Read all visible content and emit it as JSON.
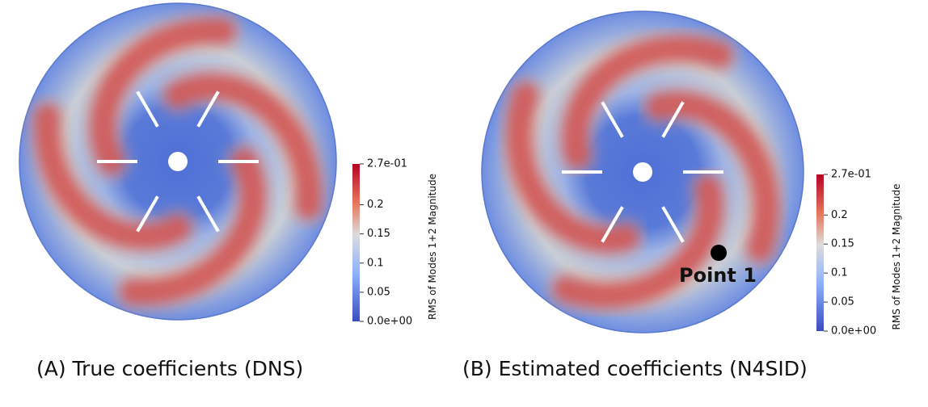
{
  "panels": [
    {
      "caption": "(A) True coefficients (DNS)",
      "colorbar": {
        "title": "RMS of Modes 1+2 Magnitude",
        "ticks": [
          "2.7e-01",
          "0.2",
          "0.15",
          "0.1",
          "0.05",
          "0.0e+00"
        ]
      }
    },
    {
      "caption": "(B) Estimated coefficients (N4SID)",
      "colorbar": {
        "title": "RMS of Modes 1+2 Magnitude",
        "ticks": [
          "2.7e-01",
          "0.2",
          "0.15",
          "0.1",
          "0.05",
          "0.0e+00"
        ]
      },
      "annotation": "Point 1"
    }
  ]
}
